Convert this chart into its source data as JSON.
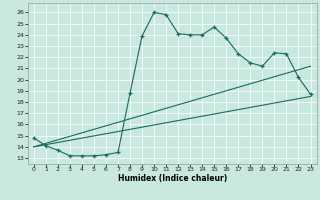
{
  "xlabel": "Humidex (Indice chaleur)",
  "background_color": "#c8e8e0",
  "line_color": "#1a6b5a",
  "grid_color": "#ffffff",
  "xlim": [
    -0.5,
    23.5
  ],
  "ylim": [
    12.5,
    26.8
  ],
  "yticks": [
    13,
    14,
    15,
    16,
    17,
    18,
    19,
    20,
    21,
    22,
    23,
    24,
    25,
    26
  ],
  "xticks": [
    0,
    1,
    2,
    3,
    4,
    5,
    6,
    7,
    8,
    9,
    10,
    11,
    12,
    13,
    14,
    15,
    16,
    17,
    18,
    19,
    20,
    21,
    22,
    23
  ],
  "curve1_x": [
    0,
    1,
    2,
    3,
    4,
    5,
    6,
    7,
    8,
    9,
    10,
    11,
    12,
    13,
    14,
    15,
    16,
    17,
    18,
    19,
    20,
    21,
    22,
    23
  ],
  "curve1_y": [
    14.8,
    14.1,
    13.7,
    13.2,
    13.2,
    13.2,
    13.3,
    13.5,
    18.8,
    23.9,
    26.0,
    25.8,
    24.1,
    24.0,
    24.0,
    24.7,
    23.7,
    22.3,
    21.5,
    21.2,
    22.4,
    22.3,
    20.2,
    18.7
  ],
  "curve2_x": [
    0,
    23
  ],
  "curve2_y": [
    14.0,
    18.5
  ],
  "curve3_x": [
    0,
    23
  ],
  "curve3_y": [
    14.0,
    21.2
  ]
}
